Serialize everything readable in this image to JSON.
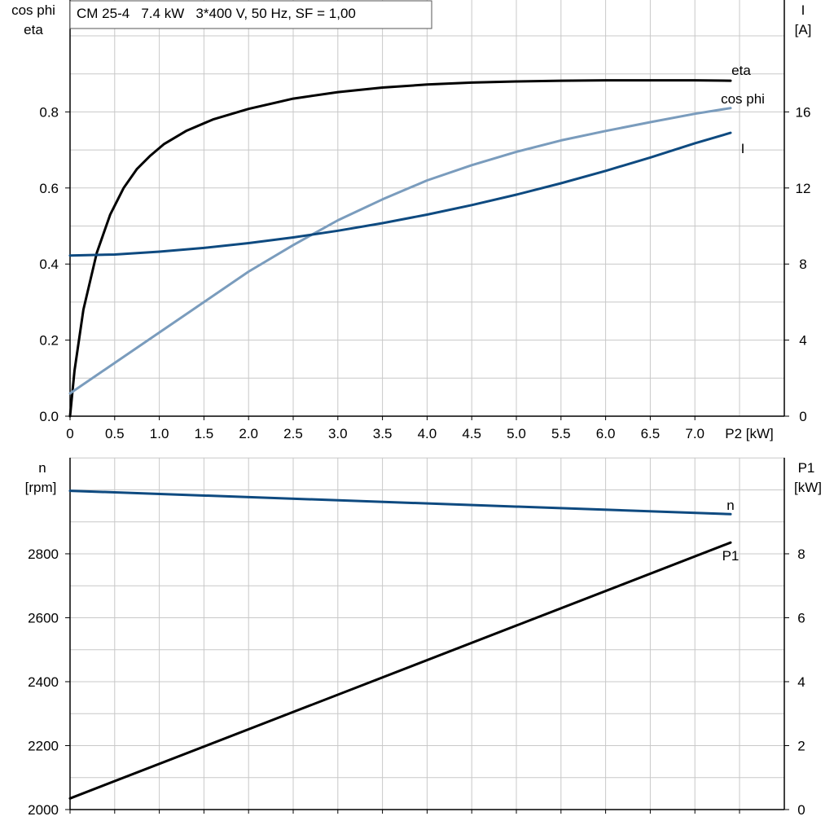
{
  "header": {
    "title": "CM 25-4   7.4 kW   3*400 V, 50 Hz, SF = 1,00"
  },
  "chart_data": [
    {
      "type": "line",
      "title": "CM 25-4   7.4 kW   3*400 V, 50 Hz, SF = 1,00",
      "xlabel": "P2 [kW]",
      "xlim": [
        0,
        8.0
      ],
      "x_ticks": [
        0,
        0.5,
        1.0,
        1.5,
        2.0,
        2.5,
        3.0,
        3.5,
        4.0,
        4.5,
        5.0,
        5.5,
        6.0,
        6.5,
        7.0
      ],
      "x_tick_labels": [
        "0",
        "0.5",
        "1.0",
        "1.5",
        "2.0",
        "2.5",
        "3.0",
        "3.5",
        "4.0",
        "4.5",
        "5.0",
        "5.5",
        "6.0",
        "6.5",
        "7.0"
      ],
      "x_unit_label": "P2 [kW]",
      "y_left": {
        "label_lines": [
          "cos phi",
          "eta"
        ],
        "lim": [
          0,
          1.0
        ],
        "ticks": [
          0.0,
          0.2,
          0.4,
          0.6,
          0.8
        ],
        "tick_labels": [
          "0.0",
          "0.2",
          "0.4",
          "0.6",
          "0.8"
        ]
      },
      "y_right": {
        "label_lines": [
          "I",
          "[A]"
        ],
        "lim": [
          0,
          20
        ],
        "ticks": [
          0,
          4,
          8,
          12,
          16
        ],
        "tick_labels": [
          "0",
          "4",
          "8",
          "12",
          "16"
        ]
      },
      "grid": true,
      "series": [
        {
          "name": "eta",
          "axis": "left",
          "color": "#000000",
          "x": [
            0,
            0.05,
            0.15,
            0.3,
            0.45,
            0.6,
            0.75,
            0.9,
            1.05,
            1.3,
            1.6,
            2.0,
            2.5,
            3.0,
            3.5,
            4.0,
            4.5,
            5.0,
            5.5,
            6.0,
            6.5,
            7.0,
            7.4
          ],
          "y": [
            0.0,
            0.12,
            0.28,
            0.43,
            0.53,
            0.6,
            0.65,
            0.685,
            0.715,
            0.75,
            0.78,
            0.808,
            0.835,
            0.852,
            0.864,
            0.872,
            0.877,
            0.88,
            0.882,
            0.883,
            0.883,
            0.883,
            0.882
          ]
        },
        {
          "name": "cos phi",
          "axis": "left",
          "color": "#7a9cbd",
          "x": [
            0,
            0.5,
            1.0,
            1.5,
            2.0,
            2.5,
            3.0,
            3.5,
            4.0,
            4.5,
            5.0,
            5.5,
            6.0,
            6.5,
            7.0,
            7.4
          ],
          "y": [
            0.06,
            0.14,
            0.22,
            0.3,
            0.38,
            0.45,
            0.515,
            0.57,
            0.62,
            0.66,
            0.695,
            0.725,
            0.75,
            0.773,
            0.795,
            0.81
          ]
        },
        {
          "name": "I",
          "axis": "right",
          "color": "#0e4a80",
          "x": [
            0,
            0.5,
            1.0,
            1.5,
            2.0,
            2.5,
            3.0,
            3.5,
            4.0,
            4.5,
            5.0,
            5.5,
            6.0,
            6.5,
            7.0,
            7.4
          ],
          "y": [
            8.45,
            8.5,
            8.65,
            8.85,
            9.1,
            9.4,
            9.75,
            10.15,
            10.6,
            11.1,
            11.65,
            12.25,
            12.9,
            13.6,
            14.35,
            14.9
          ]
        }
      ]
    },
    {
      "type": "line",
      "xlim": [
        0,
        8.0
      ],
      "x_ticks": [
        0,
        0.5,
        1.0,
        1.5,
        2.0,
        2.5,
        3.0,
        3.5,
        4.0,
        4.5,
        5.0,
        5.5,
        6.0,
        6.5,
        7.0,
        7.5
      ],
      "y_left": {
        "label_lines": [
          "n",
          "[rpm]"
        ],
        "lim": [
          2000,
          3100
        ],
        "ticks": [
          2000,
          2200,
          2400,
          2600,
          2800
        ],
        "tick_labels": [
          "2000",
          "2200",
          "2400",
          "2600",
          "2800"
        ]
      },
      "y_right": {
        "label_lines": [
          "P1",
          "[kW]"
        ],
        "lim": [
          0,
          11
        ],
        "ticks": [
          0,
          2,
          4,
          6,
          8
        ],
        "tick_labels": [
          "0",
          "2",
          "4",
          "6",
          "8"
        ]
      },
      "grid": true,
      "series": [
        {
          "name": "n",
          "axis": "left",
          "color": "#0e4a80",
          "x": [
            0,
            7.4
          ],
          "y": [
            2997,
            2924
          ]
        },
        {
          "name": "P1",
          "axis": "right",
          "color": "#000000",
          "x": [
            0,
            7.4
          ],
          "y": [
            0.35,
            8.35
          ]
        }
      ]
    }
  ]
}
